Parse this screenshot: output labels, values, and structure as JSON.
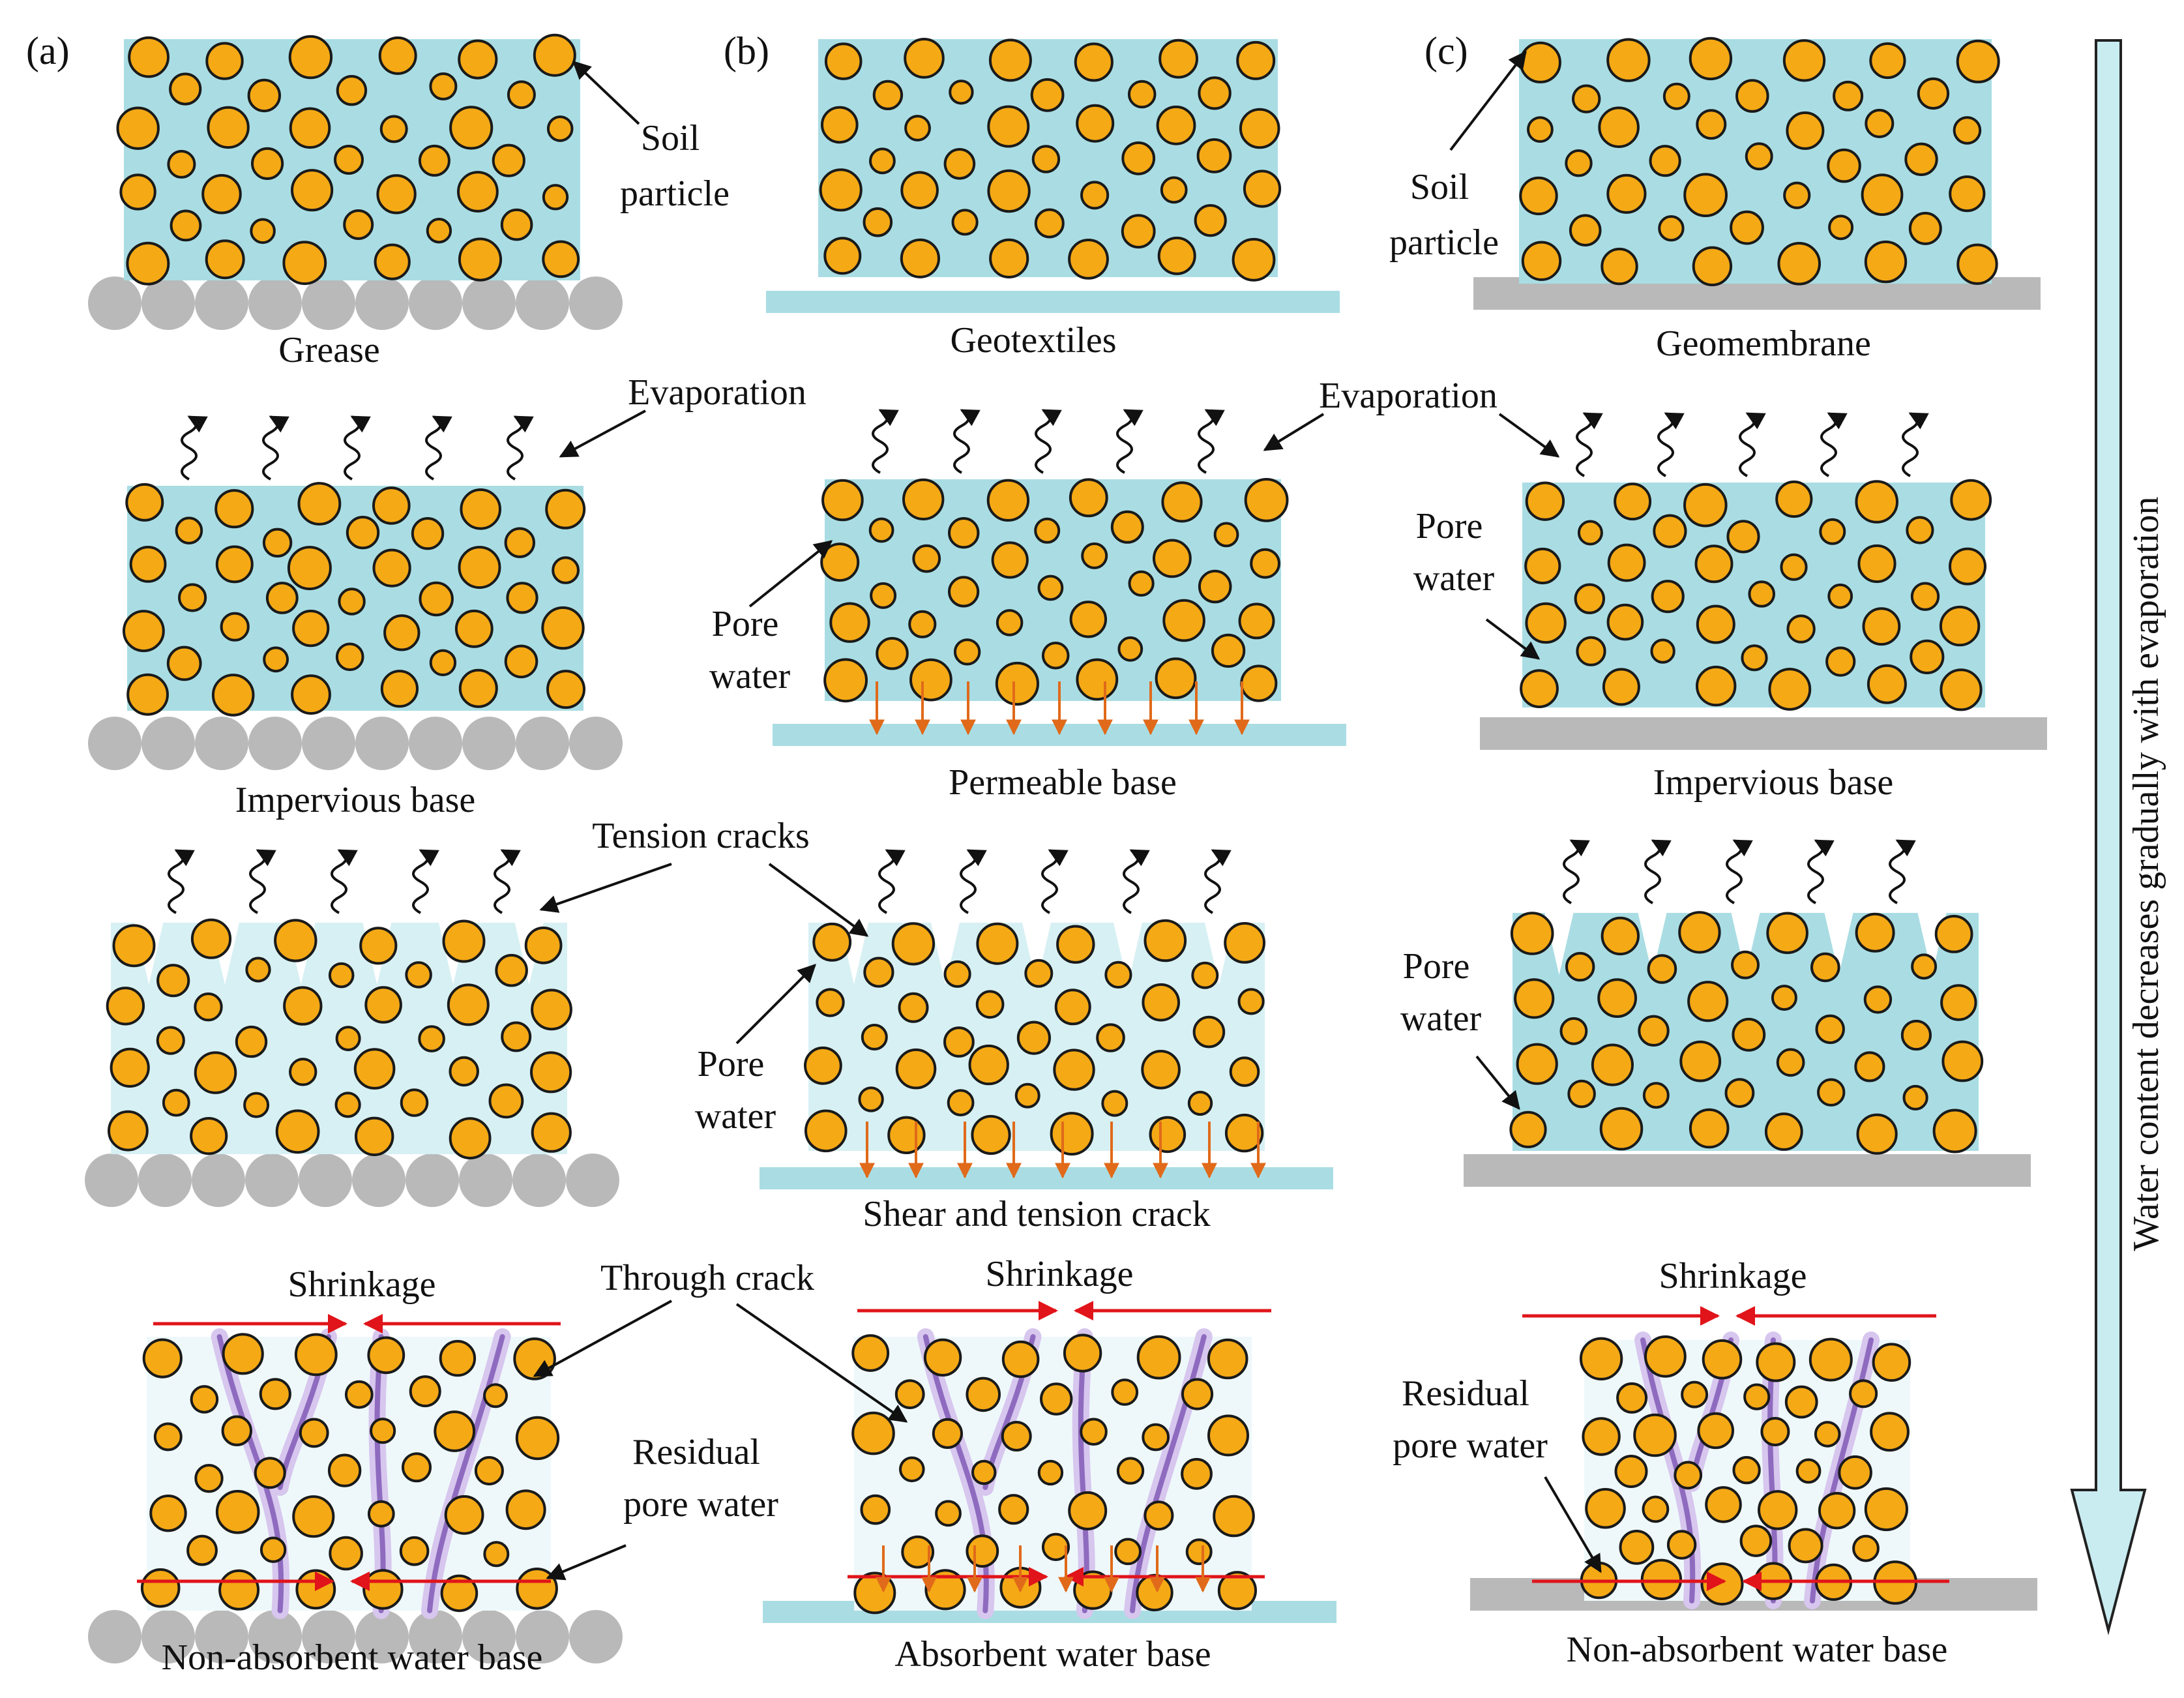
{
  "colors": {
    "water": "#a9dde3",
    "water_light": "#d7f0f3",
    "particle": "#f5a915",
    "particle_edge": "#1a1a1a",
    "base_grey": "#b9b9b9",
    "crack_purple": "#8e6bbf",
    "flow_arrow": "#e06a1a",
    "shrink_arrow": "#e0141a",
    "big_arrow_fill": "#c9ecf1"
  },
  "panels": {
    "a": {
      "tag": "(a)",
      "base": "Grease"
    },
    "b": {
      "tag": "(b)",
      "base": "Geotextiles"
    },
    "c": {
      "tag": "(c)",
      "base": "Geomembrane"
    }
  },
  "labels": {
    "soil_particle": "Soil particle",
    "evaporation": "Evaporation",
    "pore_water": "Pore water",
    "tension_cracks": "Tension cracks",
    "through_crack": "Through crack",
    "shrinkage": "Shrinkage",
    "residual_pore_water": "Residual pore water"
  },
  "stage_captions": {
    "impervious_base": "Impervious base",
    "permeable_base": "Permeable base",
    "shear_tension_crack": "Shear and tension crack",
    "non_absorbent_base": "Non-absorbent water base",
    "absorbent_base": "Absorbent water base"
  },
  "side_arrow_label": "Water content decreases gradually with evaporation"
}
